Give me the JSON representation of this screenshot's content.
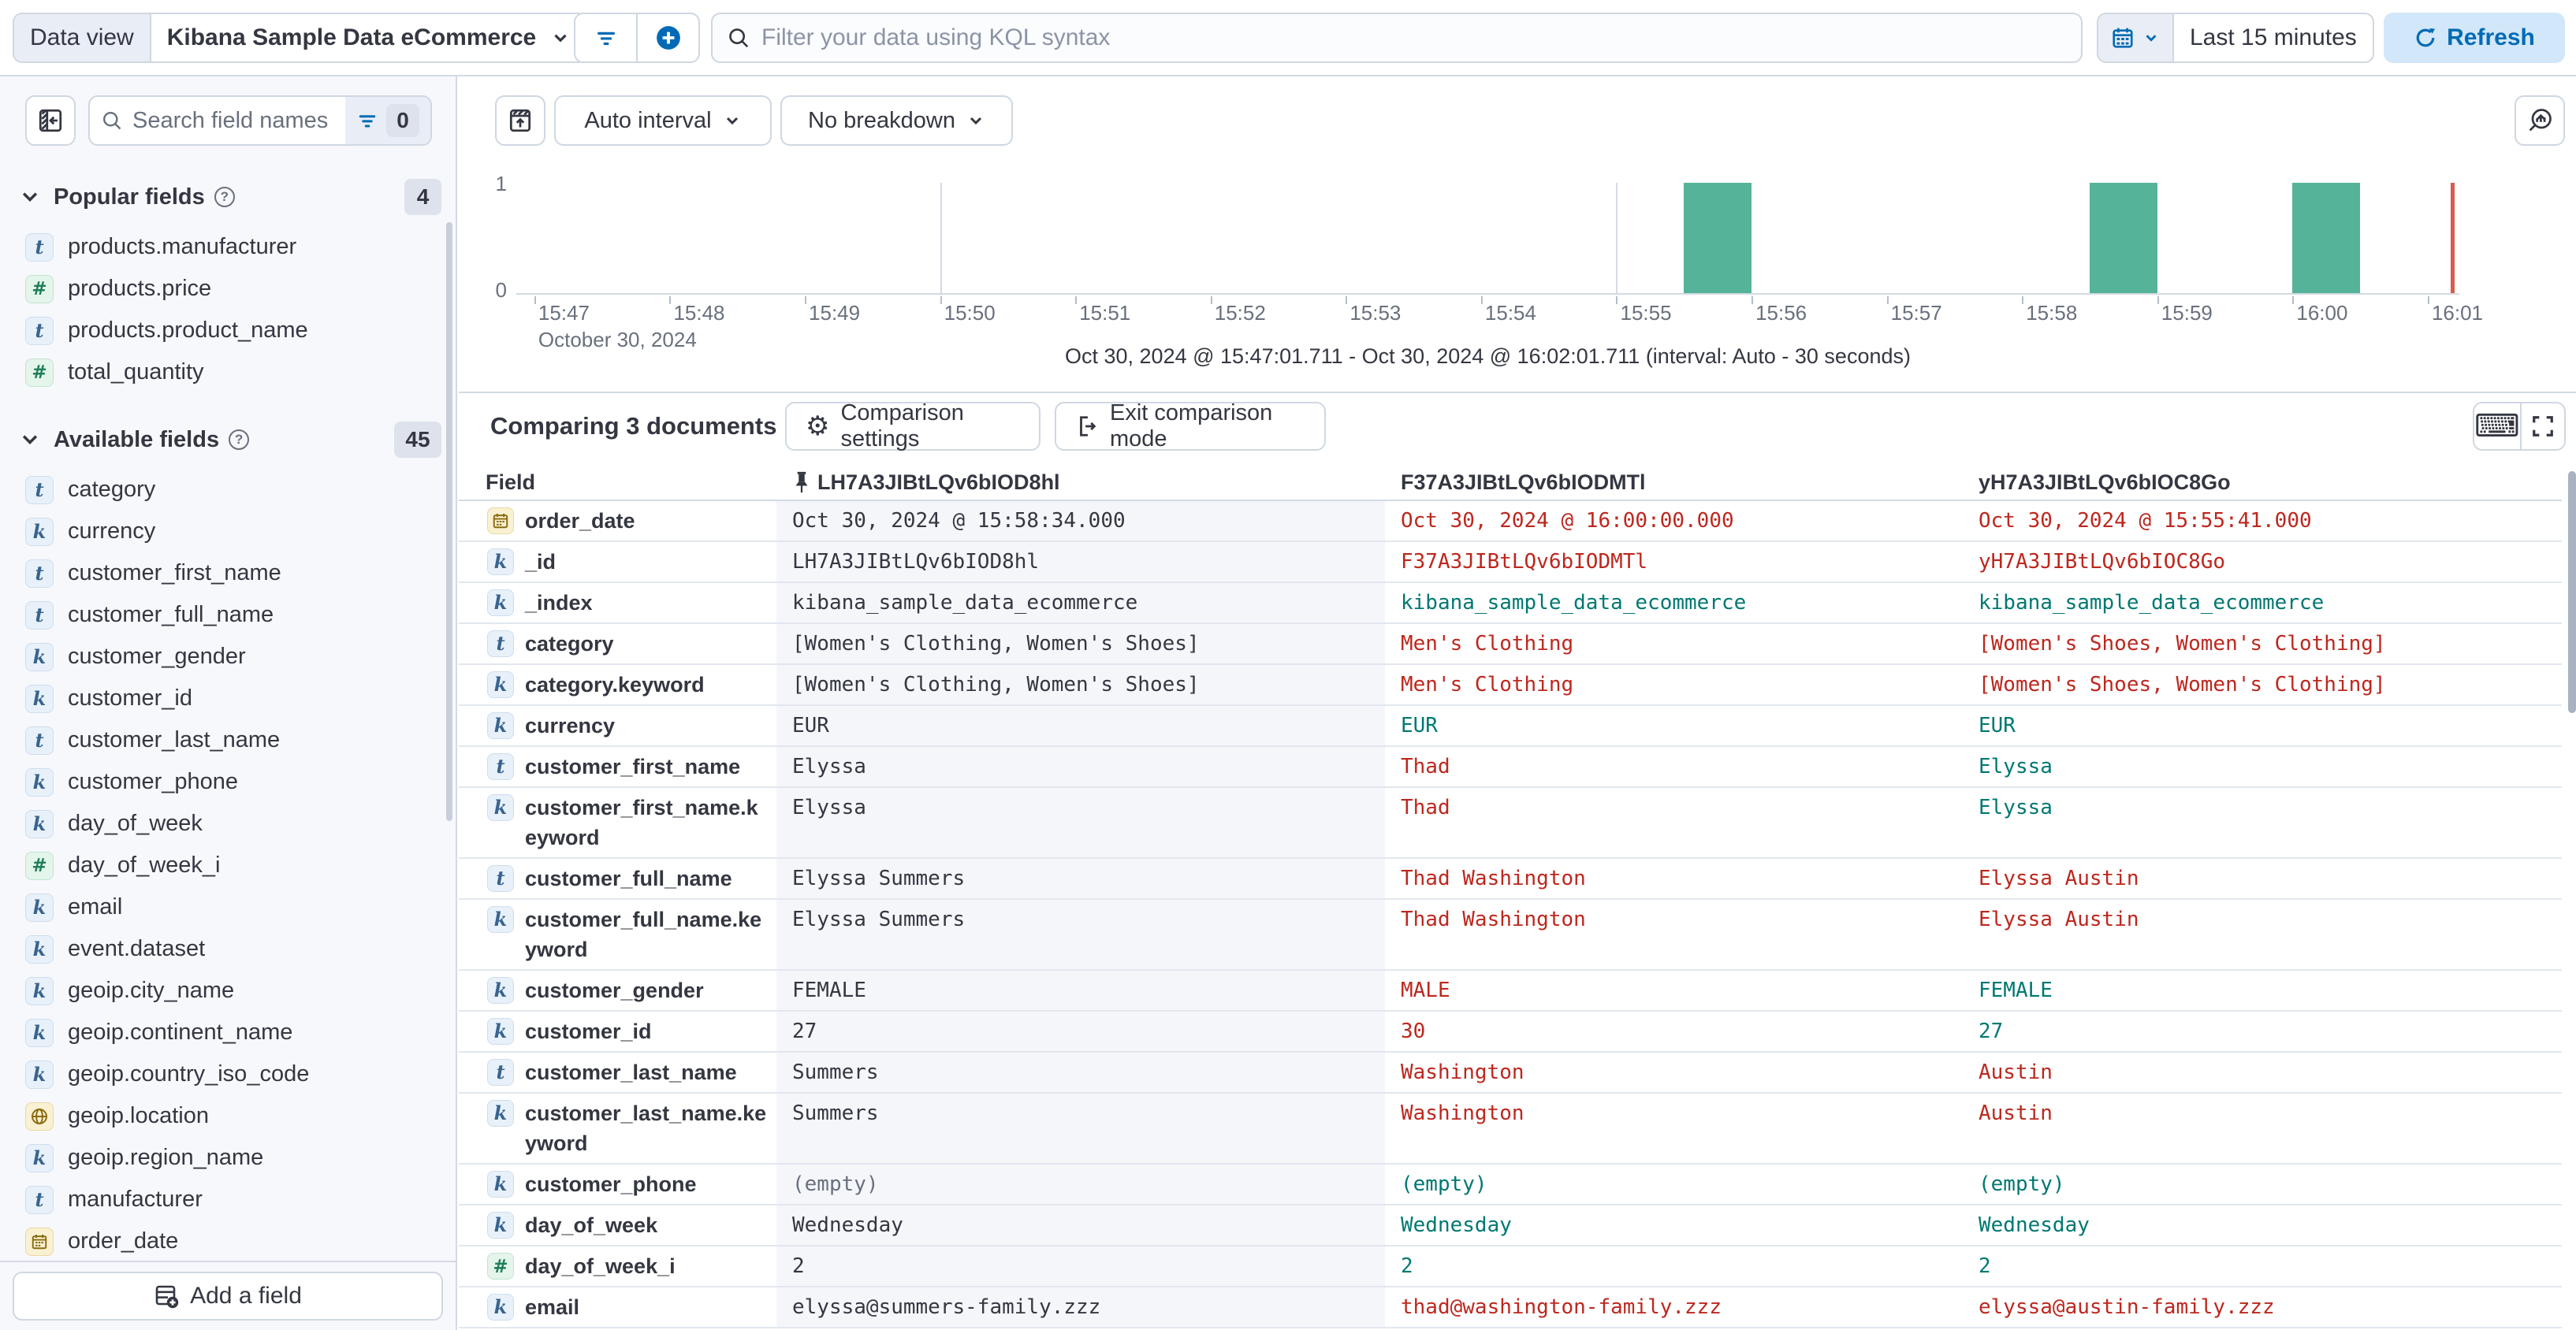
{
  "colors": {
    "accent": "#006bb4",
    "bar_green": "#54b399",
    "diff_red": "#bd271e",
    "match_teal": "#007871",
    "time_marker": "#d75c4d"
  },
  "top_bar": {
    "data_view_label": "Data view",
    "data_view_value": "Kibana Sample Data eCommerce",
    "kql_placeholder": "Filter your data using KQL syntax",
    "time_range": "Last 15 minutes",
    "refresh_label": "Refresh"
  },
  "sidebar": {
    "search_placeholder": "Search field names",
    "filter_count": "0",
    "popular": {
      "title": "Popular fields",
      "count": "4",
      "items": [
        {
          "type": "t",
          "name": "products.manufacturer"
        },
        {
          "type": "num",
          "name": "products.price"
        },
        {
          "type": "t",
          "name": "products.product_name"
        },
        {
          "type": "num",
          "name": "total_quantity"
        }
      ]
    },
    "available": {
      "title": "Available fields",
      "count": "45",
      "items": [
        {
          "type": "t",
          "name": "category"
        },
        {
          "type": "k",
          "name": "currency"
        },
        {
          "type": "t",
          "name": "customer_first_name"
        },
        {
          "type": "t",
          "name": "customer_full_name"
        },
        {
          "type": "k",
          "name": "customer_gender"
        },
        {
          "type": "k",
          "name": "customer_id"
        },
        {
          "type": "t",
          "name": "customer_last_name"
        },
        {
          "type": "k",
          "name": "customer_phone"
        },
        {
          "type": "k",
          "name": "day_of_week"
        },
        {
          "type": "num",
          "name": "day_of_week_i"
        },
        {
          "type": "k",
          "name": "email"
        },
        {
          "type": "k",
          "name": "event.dataset"
        },
        {
          "type": "k",
          "name": "geoip.city_name"
        },
        {
          "type": "k",
          "name": "geoip.continent_name"
        },
        {
          "type": "k",
          "name": "geoip.country_iso_code"
        },
        {
          "type": "geo",
          "name": "geoip.location"
        },
        {
          "type": "k",
          "name": "geoip.region_name"
        },
        {
          "type": "t",
          "name": "manufacturer"
        },
        {
          "type": "date",
          "name": "order_date"
        }
      ]
    },
    "add_field_label": "Add a field"
  },
  "chart": {
    "interval_label": "Auto interval",
    "breakdown_label": "No breakdown",
    "y_ticks": [
      "1",
      "0"
    ],
    "x_date_label": "October 30, 2024",
    "note": "Oct 30, 2024 @ 15:47:01.711 - Oct 30, 2024 @ 16:02:01.711 (interval: Auto - 30 seconds)",
    "chart_data": {
      "type": "bar",
      "title": "Document count histogram",
      "axis_start": "15:46:52",
      "axis_end": "16:01:14",
      "ylim": [
        0,
        1
      ],
      "x_ticks": [
        "15:47",
        "15:48",
        "15:49",
        "15:50",
        "15:51",
        "15:52",
        "15:53",
        "15:54",
        "15:55",
        "15:56",
        "15:57",
        "15:58",
        "15:59",
        "16:00",
        "16:01"
      ],
      "gridlines": [
        {
          "time": "15:50",
          "strong": false
        },
        {
          "time": "15:55",
          "strong": false
        },
        {
          "time": "16:00",
          "strong": true
        }
      ],
      "bar_interval_seconds": 30,
      "bars": [
        {
          "time": "15:55:30",
          "count": 1
        },
        {
          "time": "15:58:30",
          "count": 1
        },
        {
          "time": "16:00:00",
          "count": 1
        }
      ]
    }
  },
  "comparison": {
    "title": "Comparing 3 documents",
    "settings_label": "Comparison settings",
    "exit_label": "Exit comparison mode",
    "columns": [
      "Field",
      "LH7A3JIBtLQv6bIOD8hl",
      "F37A3JIBtLQv6bIODMTl",
      "yH7A3JIBtLQv6bIOC8Go"
    ],
    "rows": [
      {
        "type": "date",
        "field": "order_date",
        "cells": [
          {
            "t": "Oct 30, 2024 @ 15:58:34.000",
            "s": "base"
          },
          {
            "t": "Oct 30, 2024 @ 16:00:00.000",
            "s": "diff"
          },
          {
            "t": "Oct 30, 2024 @ 15:55:41.000",
            "s": "diff"
          }
        ]
      },
      {
        "type": "k",
        "field": "_id",
        "cells": [
          {
            "t": "LH7A3JIBtLQv6bIOD8hl",
            "s": "base"
          },
          {
            "t": "F37A3JIBtLQv6bIODMTl",
            "s": "diff"
          },
          {
            "t": "yH7A3JIBtLQv6bIOC8Go",
            "s": "diff"
          }
        ]
      },
      {
        "type": "k",
        "field": "_index",
        "cells": [
          {
            "t": "kibana_sample_data_ecommerce",
            "s": "base"
          },
          {
            "t": "kibana_sample_data_ecommerce",
            "s": "match"
          },
          {
            "t": "kibana_sample_data_ecommerce",
            "s": "match"
          }
        ]
      },
      {
        "type": "t",
        "field": "category",
        "cells": [
          {
            "t": "[Women's Clothing, Women's Shoes]",
            "s": "base"
          },
          {
            "t": "Men's Clothing",
            "s": "diff"
          },
          {
            "t": "[Women's Shoes, Women's Clothing]",
            "s": "diff"
          }
        ]
      },
      {
        "type": "k",
        "field": "category.keyword",
        "cells": [
          {
            "t": "[Women's Clothing, Women's Shoes]",
            "s": "base"
          },
          {
            "t": "Men's Clothing",
            "s": "diff"
          },
          {
            "t": "[Women's Shoes, Women's Clothing]",
            "s": "diff"
          }
        ]
      },
      {
        "type": "k",
        "field": "currency",
        "cells": [
          {
            "t": "EUR",
            "s": "base"
          },
          {
            "t": "EUR",
            "s": "match"
          },
          {
            "t": "EUR",
            "s": "match"
          }
        ]
      },
      {
        "type": "t",
        "field": "customer_first_name",
        "cells": [
          {
            "t": "Elyssa",
            "s": "base"
          },
          {
            "t": "Thad",
            "s": "diff"
          },
          {
            "t": "Elyssa",
            "s": "match"
          }
        ]
      },
      {
        "type": "k",
        "field": "customer_first_name.keyword",
        "cells": [
          {
            "t": "Elyssa",
            "s": "base"
          },
          {
            "t": "Thad",
            "s": "diff"
          },
          {
            "t": "Elyssa",
            "s": "match"
          }
        ]
      },
      {
        "type": "t",
        "field": "customer_full_name",
        "cells": [
          {
            "t": "Elyssa Summers",
            "s": "base"
          },
          {
            "t": "Thad Washington",
            "s": "diff"
          },
          {
            "t": "Elyssa Austin",
            "s": "diff"
          }
        ]
      },
      {
        "type": "k",
        "field": "customer_full_name.keyword",
        "cells": [
          {
            "t": "Elyssa Summers",
            "s": "base"
          },
          {
            "t": "Thad Washington",
            "s": "diff"
          },
          {
            "t": "Elyssa Austin",
            "s": "diff"
          }
        ]
      },
      {
        "type": "k",
        "field": "customer_gender",
        "cells": [
          {
            "t": "FEMALE",
            "s": "base"
          },
          {
            "t": "MALE",
            "s": "diff"
          },
          {
            "t": "FEMALE",
            "s": "match"
          }
        ]
      },
      {
        "type": "k",
        "field": "customer_id",
        "cells": [
          {
            "t": "27",
            "s": "base"
          },
          {
            "t": "30",
            "s": "diff"
          },
          {
            "t": "27",
            "s": "match"
          }
        ]
      },
      {
        "type": "t",
        "field": "customer_last_name",
        "cells": [
          {
            "t": "Summers",
            "s": "base"
          },
          {
            "t": "Washington",
            "s": "diff"
          },
          {
            "t": "Austin",
            "s": "diff"
          }
        ]
      },
      {
        "type": "k",
        "field": "customer_last_name.keyword",
        "cells": [
          {
            "t": "Summers",
            "s": "base"
          },
          {
            "t": "Washington",
            "s": "diff"
          },
          {
            "t": "Austin",
            "s": "diff"
          }
        ]
      },
      {
        "type": "k",
        "field": "customer_phone",
        "cells": [
          {
            "t": "(empty)",
            "s": "muted"
          },
          {
            "t": "(empty)",
            "s": "match"
          },
          {
            "t": "(empty)",
            "s": "match"
          }
        ]
      },
      {
        "type": "k",
        "field": "day_of_week",
        "cells": [
          {
            "t": "Wednesday",
            "s": "base"
          },
          {
            "t": "Wednesday",
            "s": "match"
          },
          {
            "t": "Wednesday",
            "s": "match"
          }
        ]
      },
      {
        "type": "num",
        "field": "day_of_week_i",
        "cells": [
          {
            "t": "2",
            "s": "base"
          },
          {
            "t": "2",
            "s": "match"
          },
          {
            "t": "2",
            "s": "match"
          }
        ]
      },
      {
        "type": "k",
        "field": "email",
        "cells": [
          {
            "t": "elyssa@summers-family.zzz",
            "s": "base"
          },
          {
            "t": "thad@washington-family.zzz",
            "s": "diff"
          },
          {
            "t": "elyssa@austin-family.zzz",
            "s": "diff"
          }
        ]
      }
    ]
  }
}
